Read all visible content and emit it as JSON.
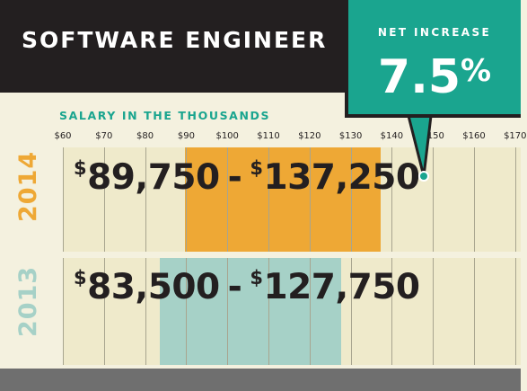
{
  "header": {
    "title": "SOFTWARE ENGINEER",
    "badge_label": "NET INCREASE",
    "badge_value": "7.5",
    "badge_unit": "%"
  },
  "colors": {
    "header_bg": "#231f20",
    "accent": "#1aa58f",
    "bar_2014": "#eea835",
    "bar_2013": "#a6d1c7",
    "year_2014": "#eea835",
    "year_2013": "#a6d1c7",
    "panel_bg": "#efeacb"
  },
  "chart_data": {
    "type": "bar",
    "orientation": "horizontal-range",
    "title": "SOFTWARE ENGINEER",
    "subtitle": "SALARY IN THE THOUSANDS",
    "x_ticks": [
      "$60",
      "$70",
      "$80",
      "$90",
      "$100",
      "$110",
      "$120",
      "$130",
      "$140",
      "$150",
      "$160",
      "$170"
    ],
    "xlim": [
      60,
      170
    ],
    "grid": true,
    "series": [
      {
        "name": "2014",
        "min": 89.75,
        "max": 137.25,
        "min_text": "89,750",
        "max_text": "137,250",
        "currency": "$"
      },
      {
        "name": "2013",
        "min": 83.5,
        "max": 127.75,
        "min_text": "83,500",
        "max_text": "127,750",
        "currency": "$"
      }
    ],
    "annotation": {
      "label": "NET INCREASE",
      "value": "7.5",
      "unit": "%"
    }
  }
}
